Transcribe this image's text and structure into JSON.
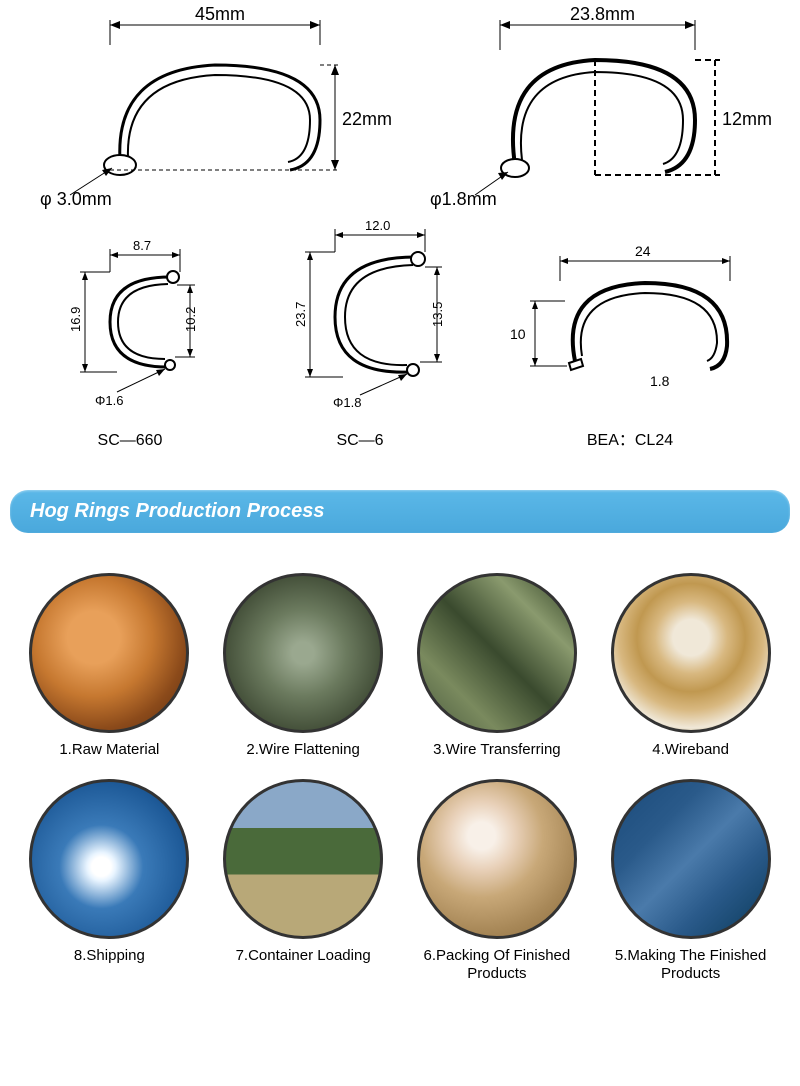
{
  "topDiagrams": {
    "left": {
      "width": "45mm",
      "height": "22mm",
      "diameter": "3.0mm",
      "diameterPrefix": "φ "
    },
    "right": {
      "width": "23.8mm",
      "height": "12mm",
      "diameter": "1.8mm",
      "diameterPrefix": "φ"
    }
  },
  "midDiagrams": {
    "d1": {
      "topWidth": "8.7",
      "outerHeight": "16.9",
      "innerHeight": "10.2",
      "wireDia": "Φ1.6",
      "model": "SC—660"
    },
    "d2": {
      "topWidth": "12.0",
      "outerHeight": "23.7",
      "innerHeight": "13.5",
      "wireDia": "Φ1.8",
      "model": "SC—6"
    },
    "d3": {
      "topWidth": "24",
      "height": "10",
      "wireDia": "1.8",
      "model": "BEA：CL24"
    }
  },
  "headerTitle": "Hog Rings Production Process",
  "process": [
    {
      "label": "1.Raw Material",
      "imgClass": "raw-mat"
    },
    {
      "label": "2.Wire Flattening",
      "imgClass": "flattening"
    },
    {
      "label": "3.Wire Transferring",
      "imgClass": "transferring"
    },
    {
      "label": "4.Wireband",
      "imgClass": "wireband"
    },
    {
      "label": "8.Shipping",
      "imgClass": "shipping"
    },
    {
      "label": "7.Container Loading",
      "imgClass": "container-load"
    },
    {
      "label": "6.Packing Of Finished Products",
      "imgClass": "packing"
    },
    {
      "label": "5.Making The Finished Products",
      "imgClass": "making"
    }
  ],
  "colors": {
    "headerBg": "#4aa8dc",
    "headerText": "#ffffff",
    "stroke": "#000000",
    "ringFill": "#ffffff"
  }
}
